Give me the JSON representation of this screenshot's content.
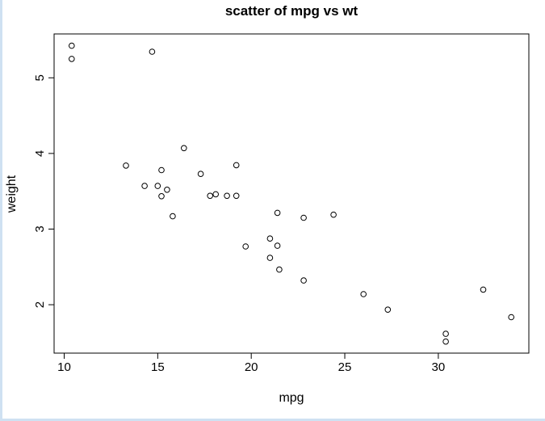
{
  "window": {
    "edge_color": "#cfe1f2",
    "background": "#ffffff"
  },
  "chart_data": {
    "type": "scatter",
    "title": "scatter of mpg vs wt",
    "xlabel": "mpg",
    "ylabel": "weight",
    "xlim": [
      9.46,
      34.84
    ],
    "ylim": [
      1.36,
      5.58
    ],
    "xticks": [
      10,
      15,
      20,
      25,
      30
    ],
    "yticks": [
      2,
      3,
      4,
      5
    ],
    "marker": "open-circle",
    "grid": false,
    "legend": false,
    "colors": {
      "point_stroke": "#000000",
      "axis": "#000000",
      "text": "#000000"
    },
    "points": [
      [
        21.0,
        2.62
      ],
      [
        21.0,
        2.875
      ],
      [
        22.8,
        2.32
      ],
      [
        21.4,
        3.215
      ],
      [
        18.7,
        3.44
      ],
      [
        18.1,
        3.46
      ],
      [
        14.3,
        3.57
      ],
      [
        24.4,
        3.19
      ],
      [
        22.8,
        3.15
      ],
      [
        19.2,
        3.44
      ],
      [
        17.8,
        3.44
      ],
      [
        16.4,
        4.07
      ],
      [
        17.3,
        3.73
      ],
      [
        15.2,
        3.78
      ],
      [
        10.4,
        5.25
      ],
      [
        10.4,
        5.424
      ],
      [
        14.7,
        5.345
      ],
      [
        32.4,
        2.2
      ],
      [
        30.4,
        1.615
      ],
      [
        33.9,
        1.835
      ],
      [
        21.5,
        2.465
      ],
      [
        15.5,
        3.52
      ],
      [
        15.2,
        3.435
      ],
      [
        13.3,
        3.84
      ],
      [
        19.2,
        3.845
      ],
      [
        27.3,
        1.935
      ],
      [
        26.0,
        2.14
      ],
      [
        30.4,
        1.513
      ],
      [
        15.8,
        3.17
      ],
      [
        19.7,
        2.77
      ],
      [
        15.0,
        3.57
      ],
      [
        21.4,
        2.78
      ]
    ]
  }
}
